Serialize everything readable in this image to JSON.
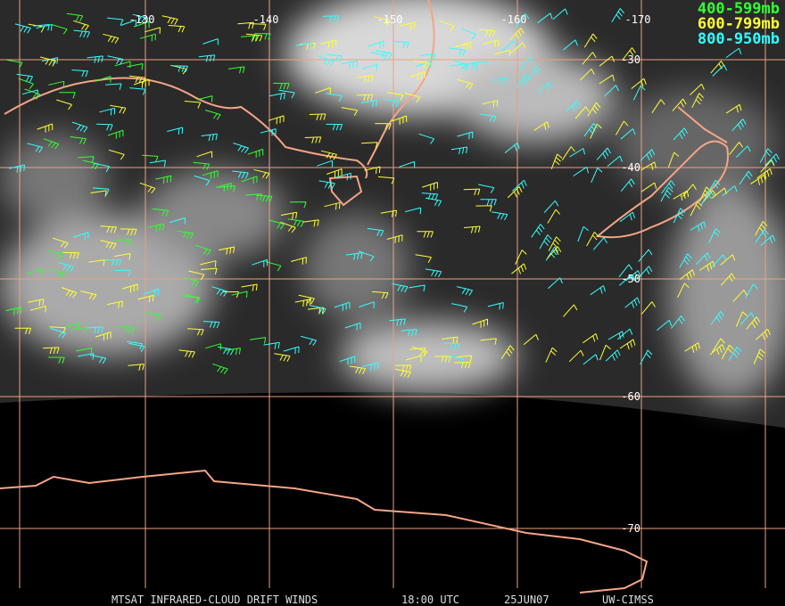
{
  "map": {
    "longitude_labels": [
      "-130",
      "-140",
      "-150",
      "-160",
      "-170"
    ],
    "latitude_labels": [
      "-30",
      "-40",
      "-50",
      "-60",
      "-70"
    ],
    "legend": [
      {
        "label": "400-599mb",
        "color": "#33ff33"
      },
      {
        "label": "600-799mb",
        "color": "#ffff33"
      },
      {
        "label": "800-950mb",
        "color": "#33ffff"
      }
    ],
    "footer": [
      "MTSAT INFRARED-CLOUD DRIFT WINDS",
      "18:00 UTC",
      "25JUN07",
      "UW-CIMSS"
    ]
  }
}
